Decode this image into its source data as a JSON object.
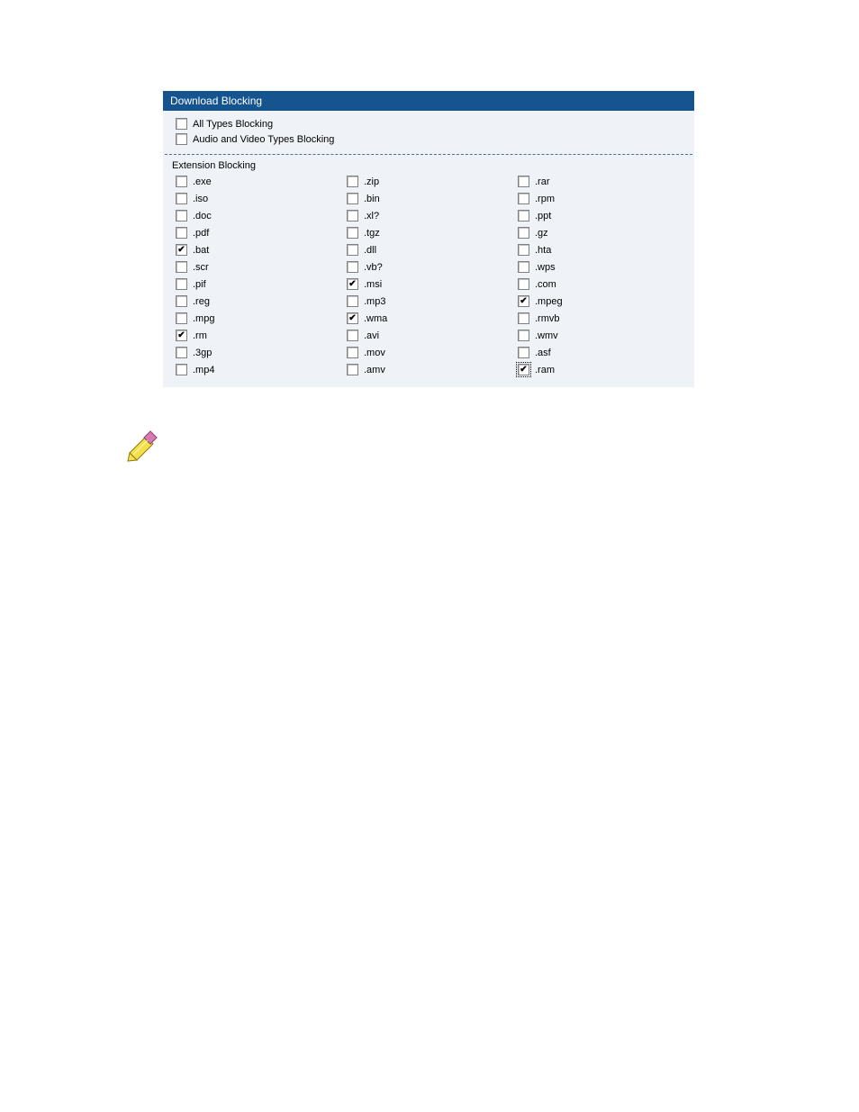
{
  "colors": {
    "panel_bg": "#eff3f7",
    "header_bg": "#15548e",
    "header_text": "#ffffff",
    "divider": "#4a6f9a",
    "text": "#000000",
    "checkbox_bg": "#ffffff",
    "checkbox_border": "#808080"
  },
  "header": {
    "title": "Download Blocking"
  },
  "meta_options": [
    {
      "id": "all-types",
      "label": "All Types Blocking",
      "checked": false
    },
    {
      "id": "av-types",
      "label": "Audio and Video Types Blocking",
      "checked": false
    }
  ],
  "extension_section": {
    "label": "Extension Blocking"
  },
  "columns": [
    [
      {
        "ext": ".exe",
        "checked": false
      },
      {
        "ext": ".iso",
        "checked": false
      },
      {
        "ext": ".doc",
        "checked": false
      },
      {
        "ext": ".pdf",
        "checked": false
      },
      {
        "ext": ".bat",
        "checked": true
      },
      {
        "ext": ".scr",
        "checked": false
      },
      {
        "ext": ".pif",
        "checked": false
      },
      {
        "ext": ".reg",
        "checked": false
      },
      {
        "ext": ".mpg",
        "checked": false
      },
      {
        "ext": ".rm",
        "checked": true
      },
      {
        "ext": ".3gp",
        "checked": false
      },
      {
        "ext": ".mp4",
        "checked": false
      }
    ],
    [
      {
        "ext": ".zip",
        "checked": false
      },
      {
        "ext": ".bin",
        "checked": false
      },
      {
        "ext": ".xl?",
        "checked": false
      },
      {
        "ext": ".tgz",
        "checked": false
      },
      {
        "ext": ".dll",
        "checked": false
      },
      {
        "ext": ".vb?",
        "checked": false
      },
      {
        "ext": ".msi",
        "checked": true
      },
      {
        "ext": ".mp3",
        "checked": false
      },
      {
        "ext": ".wma",
        "checked": true
      },
      {
        "ext": ".avi",
        "checked": false
      },
      {
        "ext": ".mov",
        "checked": false
      },
      {
        "ext": ".amv",
        "checked": false
      }
    ],
    [
      {
        "ext": ".rar",
        "checked": false
      },
      {
        "ext": ".rpm",
        "checked": false
      },
      {
        "ext": ".ppt",
        "checked": false
      },
      {
        "ext": ".gz",
        "checked": false
      },
      {
        "ext": ".hta",
        "checked": false
      },
      {
        "ext": ".wps",
        "checked": false
      },
      {
        "ext": ".com",
        "checked": false
      },
      {
        "ext": ".mpeg",
        "checked": true
      },
      {
        "ext": ".rmvb",
        "checked": false
      },
      {
        "ext": ".wmv",
        "checked": false
      },
      {
        "ext": ".asf",
        "checked": false
      },
      {
        "ext": ".ram",
        "checked": true,
        "focused": true
      }
    ]
  ],
  "note_icon": {
    "name": "note-icon"
  }
}
